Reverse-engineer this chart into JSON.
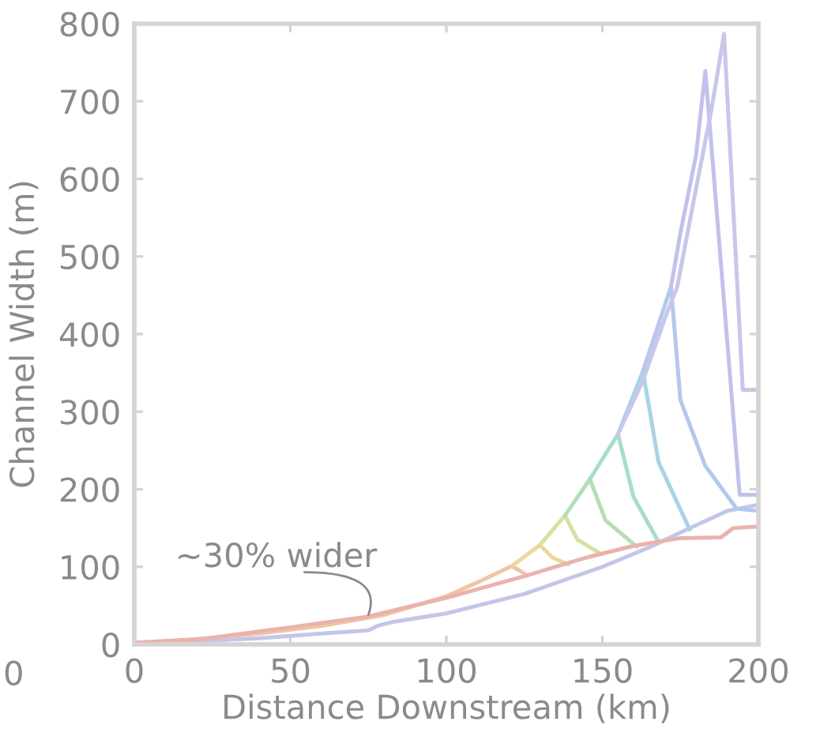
{
  "chart_data": {
    "type": "line",
    "xlabel": "Distance Downstream (km)",
    "ylabel": "Channel Width (m)",
    "xlim": [
      0,
      200
    ],
    "ylim": [
      0,
      800
    ],
    "xticks": [
      0,
      50,
      100,
      150,
      200
    ],
    "yticks": [
      0,
      100,
      200,
      300,
      400,
      500,
      600,
      700,
      800
    ],
    "grid": false,
    "legend": false,
    "marker": "none",
    "line_style": "solid",
    "annotations": [
      {
        "text": "~30% wider",
        "x": 75,
        "y": 38
      },
      "0"
    ],
    "series": [
      {
        "color": "#c4c6e8",
        "x": [
          0,
          20,
          40,
          60,
          75,
          78,
          83,
          100,
          125,
          150,
          165,
          176,
          190,
          200
        ],
        "values": [
          2,
          4,
          8,
          14,
          18,
          24,
          29,
          40,
          65,
          100,
          125,
          146,
          172,
          180
        ]
      },
      {
        "color": "#f0c4a4",
        "x": [
          0,
          20,
          40,
          60,
          80,
          100,
          110,
          121,
          126
        ],
        "values": [
          2,
          7,
          14,
          24,
          38,
          62,
          80,
          101,
          89
        ]
      },
      {
        "color": "#ead89c",
        "x": [
          121,
          130,
          134,
          139
        ],
        "values": [
          101,
          128,
          112,
          103
        ]
      },
      {
        "color": "#d6e2a0",
        "x": [
          130,
          138,
          142,
          149
        ],
        "values": [
          128,
          166,
          135,
          118
        ]
      },
      {
        "color": "#b6deb4",
        "x": [
          138,
          146,
          151,
          161
        ],
        "values": [
          166,
          213,
          160,
          126
        ]
      },
      {
        "color": "#a8dccc",
        "x": [
          146,
          155,
          160,
          168
        ],
        "values": [
          213,
          271,
          190,
          132
        ]
      },
      {
        "color": "#a8d4e4",
        "x": [
          155,
          163,
          168,
          178
        ],
        "values": [
          271,
          352,
          235,
          148
        ]
      },
      {
        "color": "#b4c8ec",
        "x": [
          163,
          172,
          175,
          183,
          193,
          200
        ],
        "values": [
          352,
          461,
          315,
          230,
          175,
          172
        ]
      },
      {
        "color": "#c0c2ec",
        "x": [
          172,
          175,
          180,
          183,
          194,
          200
        ],
        "values": [
          461,
          530,
          630,
          739,
          193,
          193
        ]
      },
      {
        "color": "#c8c6ea",
        "x": [
          155,
          163,
          170,
          174,
          180,
          185,
          189,
          195,
          200
        ],
        "values": [
          271,
          340,
          420,
          461,
          587,
          690,
          787,
          328,
          328
        ]
      },
      {
        "color": "#eab2ae",
        "x": [
          0,
          20,
          33,
          50,
          75,
          100,
          125,
          145,
          160,
          175,
          188,
          192,
          200
        ],
        "values": [
          2,
          6,
          13,
          22,
          36,
          60,
          88,
          112,
          127,
          137,
          138,
          150,
          152
        ]
      }
    ]
  }
}
